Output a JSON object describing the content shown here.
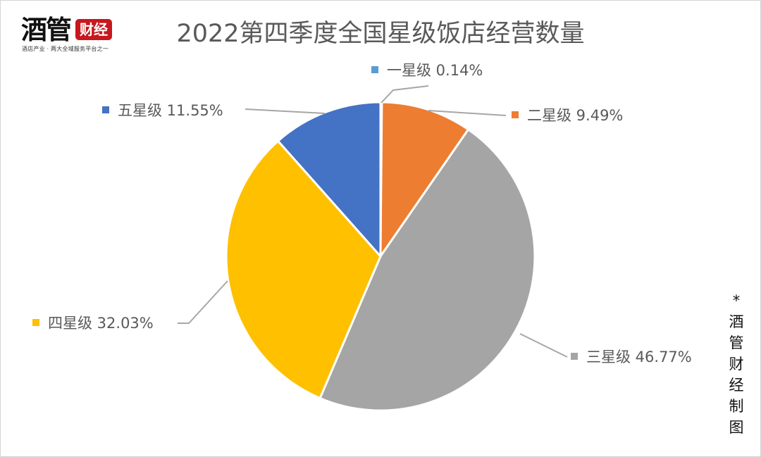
{
  "logo": {
    "main": "酒管",
    "badge": "财经",
    "tagline": "酒店产业 · 两大全域服务平台之一"
  },
  "note": "*酒管财经制图",
  "chart_data": {
    "type": "pie",
    "title": "2022第四季度全国星级饭店经营数量",
    "unit": "%",
    "slices": [
      {
        "label": "一星级",
        "value": 0.14,
        "display": "0.14%",
        "color": "#5b9bd5"
      },
      {
        "label": "二星级",
        "value": 9.49,
        "display": "9.49%",
        "color": "#ed7d31"
      },
      {
        "label": "三星级",
        "value": 46.77,
        "display": "46.77%",
        "color": "#a5a5a5"
      },
      {
        "label": "四星级",
        "value": 32.03,
        "display": "32.03%",
        "color": "#ffc000"
      },
      {
        "label": "五星级",
        "value": 11.55,
        "display": "11.55%",
        "color": "#4472c4"
      }
    ],
    "legend": "none",
    "leader_line_color": "#a6a6a6"
  }
}
